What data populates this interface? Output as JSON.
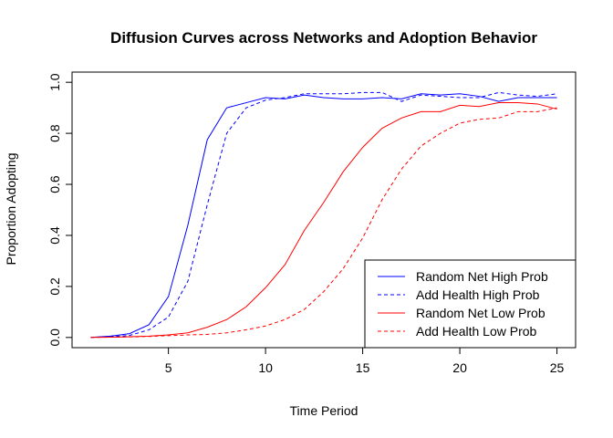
{
  "chart_data": {
    "type": "line",
    "title": "Diffusion Curves across Networks and Adoption Behavior",
    "xlabel": "Time Period",
    "ylabel": "Proportion Adopting",
    "xlim": [
      0.04,
      25.96
    ],
    "ylim": [
      -0.04,
      1.04
    ],
    "xticks": [
      5,
      10,
      15,
      20,
      25
    ],
    "yticks": [
      0.0,
      0.2,
      0.4,
      0.6,
      0.8,
      1.0
    ],
    "ytick_labels": [
      "0.0",
      "0.2",
      "0.4",
      "0.6",
      "0.8",
      "1.0"
    ],
    "grid": false,
    "legend_position": "bottom-right",
    "x": [
      1,
      2,
      3,
      4,
      5,
      6,
      7,
      8,
      9,
      10,
      11,
      12,
      13,
      14,
      15,
      16,
      17,
      18,
      19,
      20,
      21,
      22,
      23,
      24,
      25
    ],
    "series": [
      {
        "name": "Random Net High Prob",
        "color": "#0000ff",
        "dash": "solid",
        "values": [
          0.0,
          0.005,
          0.015,
          0.05,
          0.16,
          0.44,
          0.775,
          0.9,
          0.92,
          0.94,
          0.935,
          0.95,
          0.94,
          0.935,
          0.935,
          0.94,
          0.935,
          0.955,
          0.95,
          0.955,
          0.945,
          0.925,
          0.94,
          0.94,
          0.94
        ]
      },
      {
        "name": "Add Health High Prob",
        "color": "#0000ff",
        "dash": "dashed",
        "values": [
          0.0,
          0.003,
          0.008,
          0.03,
          0.08,
          0.22,
          0.52,
          0.8,
          0.9,
          0.93,
          0.94,
          0.955,
          0.955,
          0.955,
          0.96,
          0.96,
          0.925,
          0.95,
          0.945,
          0.94,
          0.94,
          0.96,
          0.95,
          0.945,
          0.955
        ]
      },
      {
        "name": "Random Net Low Prob",
        "color": "#ff0000",
        "dash": "solid",
        "values": [
          0.0,
          0.001,
          0.003,
          0.005,
          0.01,
          0.018,
          0.04,
          0.07,
          0.12,
          0.195,
          0.285,
          0.42,
          0.53,
          0.65,
          0.745,
          0.82,
          0.86,
          0.885,
          0.885,
          0.91,
          0.905,
          0.92,
          0.92,
          0.915,
          0.895
        ]
      },
      {
        "name": "Add Health Low Prob",
        "color": "#ff0000",
        "dash": "dashed",
        "values": [
          0.0,
          0.001,
          0.002,
          0.004,
          0.007,
          0.01,
          0.012,
          0.018,
          0.03,
          0.045,
          0.07,
          0.11,
          0.18,
          0.27,
          0.39,
          0.54,
          0.66,
          0.75,
          0.8,
          0.84,
          0.855,
          0.86,
          0.885,
          0.885,
          0.9
        ]
      }
    ]
  }
}
